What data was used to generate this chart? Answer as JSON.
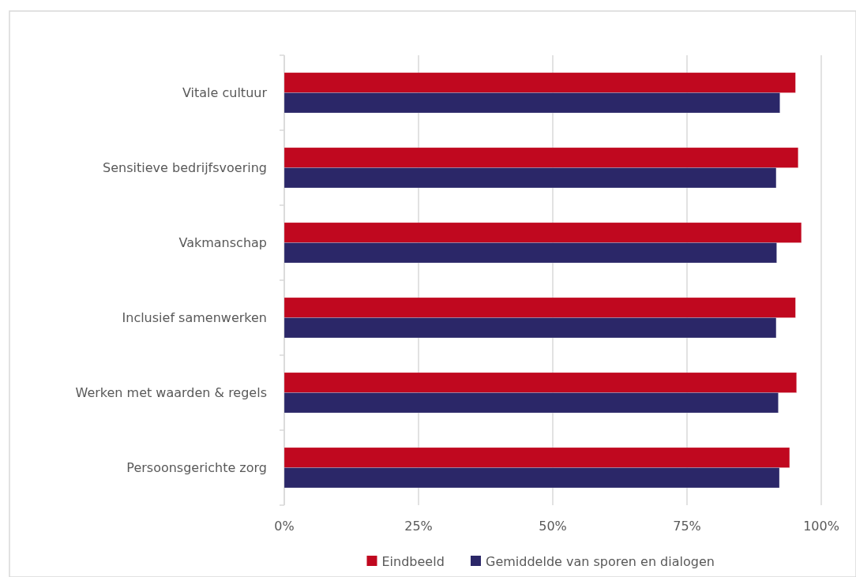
{
  "chart_data": {
    "type": "bar",
    "orientation": "horizontal",
    "categories": [
      "Vitale cultuur",
      "Sensitieve bedrijfsvoering",
      "Vakmanschap",
      "Inclusief samenwerken",
      "Werken met waarden & regels",
      "Persoonsgerichte zorg"
    ],
    "series": [
      {
        "name": "Eindbeeld",
        "color": "#c0081f",
        "values": [
          95.2,
          95.7,
          96.3,
          95.2,
          95.4,
          94.1
        ]
      },
      {
        "name": "Gemiddelde van sporen en dialogen",
        "color": "#2b2768",
        "values": [
          92.3,
          91.6,
          91.7,
          91.6,
          92.0,
          92.2
        ]
      }
    ],
    "xlim": [
      0,
      100
    ],
    "xticks": [
      {
        "value": 0,
        "label": "0%"
      },
      {
        "value": 25,
        "label": "25%"
      },
      {
        "value": 50,
        "label": "50%"
      },
      {
        "value": 75,
        "label": "75%"
      },
      {
        "value": 100,
        "label": "100%"
      }
    ],
    "grid": "x",
    "legend": "bottom"
  }
}
